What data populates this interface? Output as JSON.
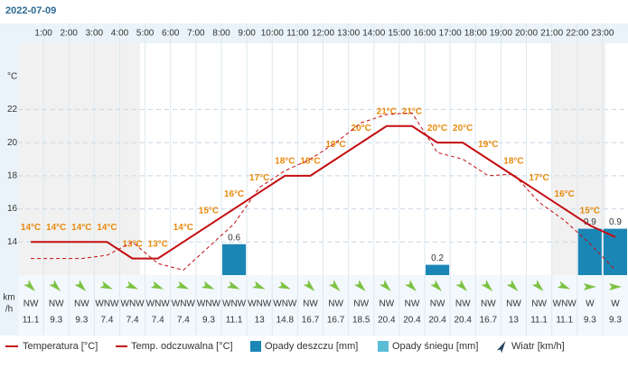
{
  "date": "2022-07-09",
  "chart_data": {
    "type": "meteogram",
    "hour_labels": [
      "1:00",
      "2:00",
      "3:00",
      "4:00",
      "5:00",
      "6:00",
      "7:00",
      "8:00",
      "9:00",
      "10:00",
      "11:00",
      "12:00",
      "13:00",
      "14:00",
      "15:00",
      "16:00",
      "17:00",
      "18:00",
      "19:00",
      "20:00",
      "21:00",
      "22:00",
      "23:00"
    ],
    "y_unit": "°C",
    "ylim": [
      12,
      26
    ],
    "yticks": [
      14,
      16,
      18,
      20,
      22
    ],
    "y2lim": [
      0,
      4.5
    ],
    "grid": true,
    "series": [
      {
        "name": "Temperatura [°C]",
        "color": "#c40d12",
        "values": [
          14,
          14,
          14,
          14,
          13,
          13,
          14,
          15,
          16,
          17,
          18,
          18,
          19,
          20,
          21,
          21,
          20,
          20,
          19,
          18,
          17,
          16,
          15,
          14.3
        ],
        "value_labels": [
          "14°C",
          "14°C",
          "14°C",
          "14°C",
          "13°C",
          "13°C",
          "14°C",
          "15°C",
          "16°C",
          "17°C",
          "18°C",
          "18°C",
          "19°C",
          "20°C",
          "21°C",
          "21°C",
          "20°C",
          "20°C",
          "19°C",
          "18°C",
          "17°C",
          "16°C",
          "15°C",
          null
        ]
      },
      {
        "name": "Temp. odczuwalna [°C]",
        "color": "#c40d12",
        "dashed": true,
        "values": [
          13,
          13,
          13,
          13.2,
          14,
          12.7,
          12.3,
          13.7,
          15.1,
          17.3,
          18.3,
          19,
          20,
          21.2,
          21.7,
          21.8,
          19.4,
          19,
          18,
          18.1,
          16.4,
          15.3,
          13.9,
          12.3
        ]
      },
      {
        "name": "Opady deszczu [mm]",
        "color": "#1a86b5",
        "axis": "y2",
        "values": [
          0,
          0,
          0,
          0,
          0,
          0,
          0,
          0,
          0.6,
          0,
          0,
          0,
          0,
          0,
          0,
          0,
          0.2,
          0,
          0,
          0,
          0,
          0,
          0.9,
          0.9
        ]
      },
      {
        "name": "Opady śniegu [mm]",
        "color": "#5bbcd6",
        "axis": "y2",
        "values": [
          0,
          0,
          0,
          0,
          0,
          0,
          0,
          0,
          0,
          0,
          0,
          0,
          0,
          0,
          0,
          0,
          0,
          0,
          0,
          0,
          0,
          0,
          0,
          0
        ]
      }
    ],
    "wind": {
      "name": "Wiatr [km/h]",
      "unit_label": [
        "km",
        "/h"
      ],
      "color": "#23435f",
      "directions": [
        "NW",
        "NW",
        "NW",
        "WNW",
        "WNW",
        "WNW",
        "WNW",
        "WNW",
        "WNW",
        "WNW",
        "WNW",
        "NW",
        "NW",
        "NW",
        "NW",
        "NW",
        "NW",
        "NW",
        "NW",
        "NW",
        "NW",
        "WNW",
        "W",
        "W"
      ],
      "values": [
        11.1,
        9.3,
        9.3,
        7.4,
        7.4,
        7.4,
        7.4,
        9.3,
        11.1,
        13,
        14.8,
        16.7,
        16.7,
        18.5,
        20.4,
        20.4,
        20.4,
        20.4,
        16.7,
        13,
        11.1,
        11.1,
        9.3,
        9.3
      ]
    }
  }
}
